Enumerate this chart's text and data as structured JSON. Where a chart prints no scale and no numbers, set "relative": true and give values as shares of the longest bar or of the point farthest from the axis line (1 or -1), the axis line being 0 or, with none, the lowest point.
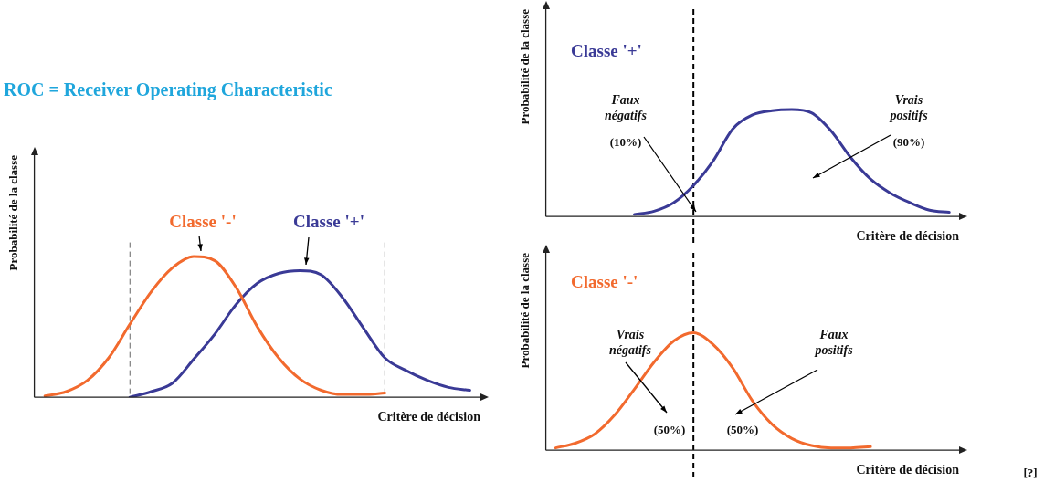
{
  "chart_data": [
    {
      "type": "line",
      "title": "ROC = Receiver Operating Characteristic",
      "xlabel": "Critère de décision",
      "ylabel": "Probabilité de la classe",
      "relative": true,
      "legend": false,
      "tick_labels": false,
      "line_style": "solid",
      "categories": [
        null,
        null,
        null,
        null,
        null,
        null,
        null,
        null,
        null,
        null,
        null,
        null,
        null,
        null,
        null,
        null,
        null,
        null,
        null,
        null,
        null
      ],
      "series": [
        {
          "name": "Classe '-'",
          "color": "#f26a2e",
          "values": [
            0.01,
            0.04,
            0.12,
            0.28,
            0.52,
            0.75,
            0.92,
            1.0,
            0.97,
            0.78,
            0.5,
            0.28,
            0.13,
            0.05,
            0.02,
            0.02,
            0.03,
            null,
            null,
            null,
            null
          ]
        },
        {
          "name": "Classe '+'",
          "color": "#3a3a96",
          "values": [
            null,
            null,
            null,
            null,
            0.0,
            0.04,
            0.1,
            0.27,
            0.45,
            0.66,
            0.81,
            0.88,
            0.9,
            0.87,
            0.71,
            0.49,
            0.28,
            0.19,
            0.12,
            0.07,
            0.05
          ]
        }
      ]
    },
    {
      "type": "line",
      "xlabel": "Critère de décision",
      "ylabel": "Probabilité de la classe",
      "relative": true,
      "legend": false,
      "tick_labels": false,
      "line_style": "solid",
      "categories": [
        null,
        null,
        null,
        null,
        null,
        null,
        null,
        null,
        null,
        null,
        null,
        null,
        null,
        null,
        null,
        null,
        null,
        null,
        null,
        null,
        null
      ],
      "series": [
        {
          "name": "Classe '+'",
          "color": "#3a3a96",
          "values": [
            null,
            null,
            null,
            null,
            0.02,
            0.05,
            0.13,
            0.29,
            0.52,
            0.82,
            0.95,
            0.99,
            1.0,
            0.97,
            0.8,
            0.55,
            0.35,
            0.22,
            0.13,
            0.06,
            0.04
          ]
        }
      ],
      "annotations": [
        "Faux négatifs",
        "(10%)",
        "Vrais positifs",
        "(90%)"
      ]
    },
    {
      "type": "line",
      "xlabel": "Critère de décision",
      "ylabel": "Probabilité de la classe",
      "relative": true,
      "legend": false,
      "tick_labels": false,
      "line_style": "solid",
      "categories": [
        null,
        null,
        null,
        null,
        null,
        null,
        null,
        null,
        null,
        null,
        null,
        null,
        null,
        null,
        null,
        null,
        null,
        null,
        null,
        null,
        null
      ],
      "series": [
        {
          "name": "Classe '-'",
          "color": "#f26a2e",
          "values": [
            0.02,
            0.06,
            0.14,
            0.3,
            0.52,
            0.75,
            0.93,
            1.0,
            0.9,
            0.7,
            0.42,
            0.22,
            0.1,
            0.04,
            0.02,
            0.02,
            0.03,
            null,
            null,
            null,
            null
          ]
        }
      ],
      "annotations": [
        "Vrais négatifs",
        "(50%)",
        "Faux positifs",
        "(50%)",
        "[?]"
      ]
    }
  ]
}
